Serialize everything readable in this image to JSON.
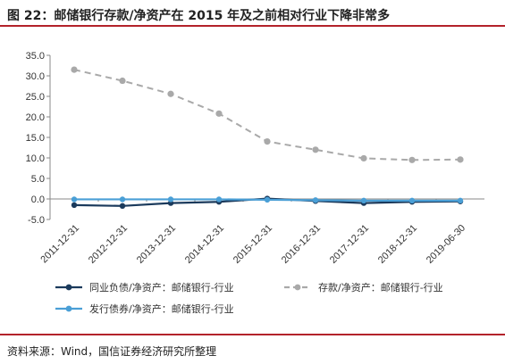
{
  "figure": {
    "title": "图 22：邮储银行存款/净资产在 2015 年及之前相对行业下降非常多",
    "source": "资料来源：Wind，国信证券经济研究所整理"
  },
  "chart_data": {
    "type": "line",
    "title": "邮储银行存款/净资产在 2015 年及之前相对行业下降非常多",
    "xlabel": "",
    "ylabel": "",
    "categories": [
      "2011-12-31",
      "2012-12-31",
      "2013-12-31",
      "2014-12-31",
      "2015-12-31",
      "2016-12-31",
      "2017-12-31",
      "2018-12-31",
      "2019-06-30"
    ],
    "ylim": [
      -5.0,
      35.0
    ],
    "yticks": [
      -5.0,
      0.0,
      5.0,
      10.0,
      15.0,
      20.0,
      25.0,
      30.0,
      35.0
    ],
    "ytick_labels": [
      "-5.0",
      "0.0",
      "5.0",
      "10.0",
      "15.0",
      "20.0",
      "25.0",
      "30.0",
      "35.0"
    ],
    "grid": false,
    "legend_position": "bottom",
    "series": [
      {
        "name": "同业负债/净资产：邮储银行-行业",
        "style": "solid",
        "color": "#1b3a5c",
        "values": [
          -1.5,
          -1.7,
          -1.0,
          -0.7,
          0.1,
          -0.5,
          -1.0,
          -0.7,
          -0.6
        ]
      },
      {
        "name": "存款/净资产：邮储银行-行业",
        "style": "dashed",
        "color": "#a9a9a9",
        "values": [
          31.5,
          28.8,
          25.6,
          20.8,
          14.0,
          12.0,
          9.9,
          9.5,
          9.6
        ]
      },
      {
        "name": "发行债券/净资产：邮储银行-行业",
        "style": "solid",
        "color": "#4a9fd6",
        "values": [
          -0.1,
          -0.1,
          -0.1,
          -0.1,
          -0.2,
          -0.3,
          -0.4,
          -0.4,
          -0.4
        ]
      }
    ]
  }
}
